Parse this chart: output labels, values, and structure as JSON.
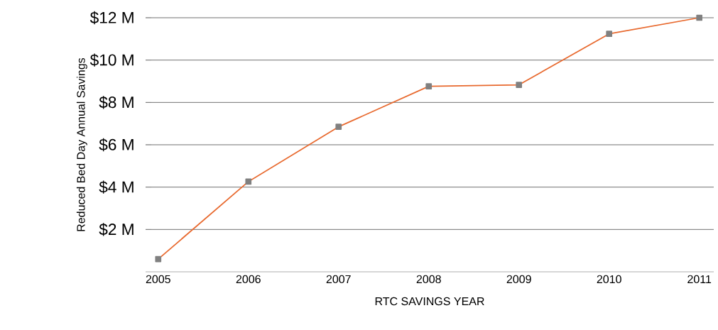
{
  "chart_data": {
    "type": "line",
    "xlabel": "RTC SAVINGS YEAR",
    "ylabel": "Reduced Bed Day Annual Savings",
    "categories": [
      "2005",
      "2006",
      "2007",
      "2008",
      "2009",
      "2010",
      "2011"
    ],
    "series": [
      {
        "color": "#e8692e",
        "values": [
          0.6,
          4.26,
          6.85,
          8.76,
          8.83,
          11.24,
          12
        ]
      }
    ],
    "ylim": [
      0,
      12
    ],
    "yticks": [
      {
        "value": 2,
        "label": "$2 M"
      },
      {
        "value": 4,
        "label": "$4 M"
      },
      {
        "value": 6,
        "label": "$6 M"
      },
      {
        "value": 8,
        "label": "$8 M"
      },
      {
        "value": 10,
        "label": "$10 M"
      },
      {
        "value": 12,
        "label": "$12 M"
      }
    ],
    "grid": "y",
    "marker": "square",
    "line_style": "solid"
  }
}
